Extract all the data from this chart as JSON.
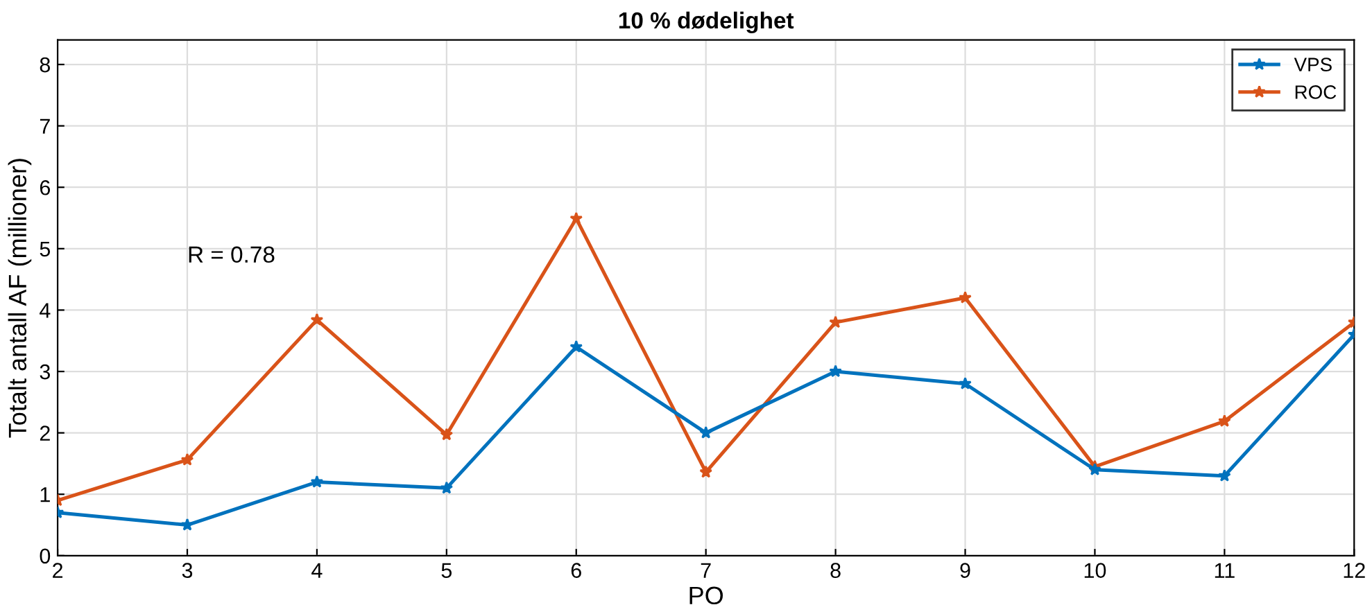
{
  "chart_data": {
    "type": "line",
    "title": "10 % dødelighet",
    "xlabel": "PO",
    "ylabel": "Totalt antall AF (millioner)",
    "x": [
      2,
      3,
      4,
      5,
      6,
      7,
      8,
      9,
      10,
      11,
      12
    ],
    "series": [
      {
        "name": "VPS",
        "color": "#0072bd",
        "values": [
          0.7,
          0.5,
          1.2,
          1.1,
          3.4,
          2.0,
          3.0,
          2.8,
          1.4,
          1.3,
          3.6
        ]
      },
      {
        "name": "ROC",
        "color": "#d95319",
        "values": [
          0.9,
          1.56,
          3.84,
          1.97,
          5.49,
          1.36,
          3.8,
          4.2,
          1.45,
          2.19,
          3.8
        ]
      }
    ],
    "annotations": [
      "R = 0.78"
    ],
    "xlim": [
      2,
      12
    ],
    "xticks": [
      2,
      3,
      4,
      5,
      6,
      7,
      8,
      9,
      10,
      11,
      12
    ],
    "ylim": [
      0,
      8.4
    ],
    "yticks": [
      0,
      1,
      2,
      3,
      4,
      5,
      6,
      7,
      8
    ],
    "grid": true,
    "legend": "top right",
    "marker": "star",
    "line_style": "solid"
  }
}
